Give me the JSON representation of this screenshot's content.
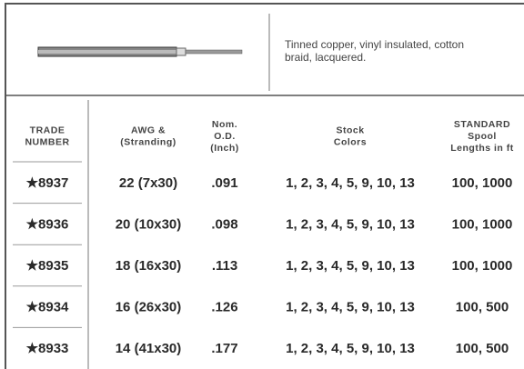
{
  "description": [
    "Tinned copper, vinyl insulated, cotton",
    "braid, lacquered."
  ],
  "table": {
    "header": [
      [
        "TRADE",
        "NUMBER"
      ],
      [
        "AWG &",
        "(Stranding)"
      ],
      [
        "Nom.",
        "O.D.",
        "(Inch)"
      ],
      [
        "Stock",
        "Colors"
      ],
      [
        "STANDARD",
        "Spool",
        "Lengths in ft"
      ]
    ],
    "rows": [
      [
        "★8937",
        "22 (7x30)",
        ".091",
        "1, 2, 3, 4, 5, 9, 10, 13",
        "100, 1000"
      ],
      [
        "★8936",
        "20 (10x30)",
        ".098",
        "1, 2, 3, 4, 5, 9, 10, 13",
        "100, 1000"
      ],
      [
        "★8935",
        "18 (16x30)",
        ".113",
        "1, 2, 3, 4, 5, 9, 10, 13",
        "100, 1000"
      ],
      [
        "★8934",
        "16 (26x30)",
        ".126",
        "1, 2, 3, 4, 5, 9, 10, 13",
        "100, 500"
      ],
      [
        "★8933",
        "14 (41x30)",
        ".177",
        "1, 2, 3, 4, 5, 9, 10, 13",
        "100, 500"
      ]
    ]
  }
}
